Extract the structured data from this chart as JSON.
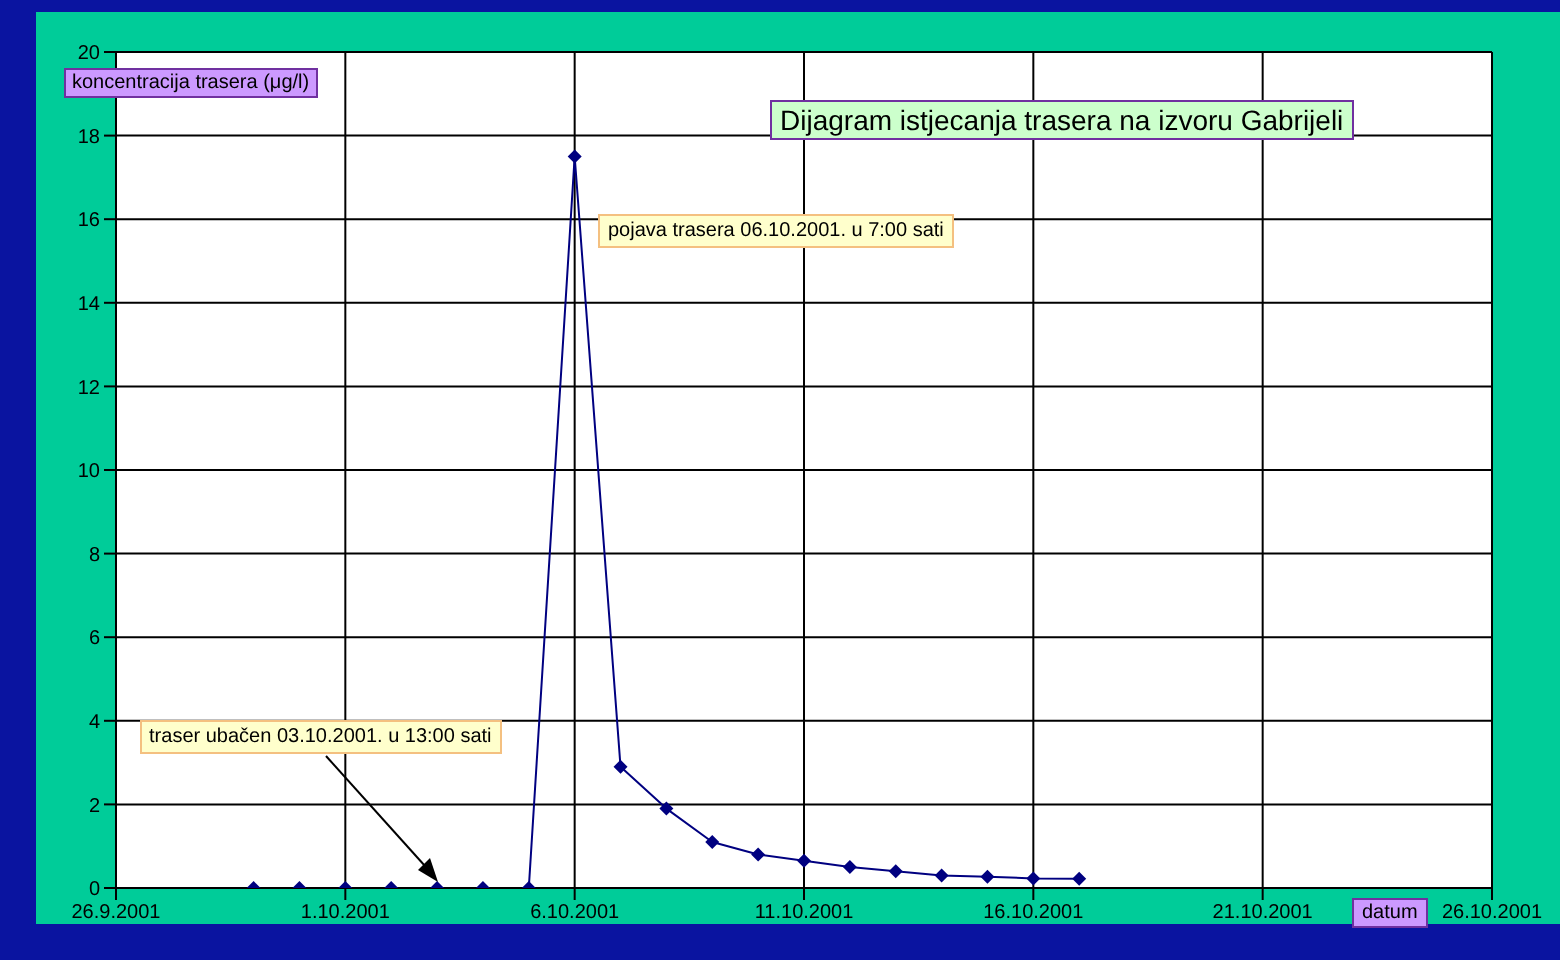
{
  "chart_data": {
    "type": "line",
    "title": "Dijagram istjecanja trasera na izvoru Gabrijeli",
    "xlabel": "datum",
    "ylabel": "koncentracija trasera (μg/l)",
    "x": [
      "2001-09-29",
      "2001-09-30",
      "2001-10-01",
      "2001-10-02",
      "2001-10-03",
      "2001-10-04",
      "2001-10-05",
      "2001-10-06",
      "2001-10-07",
      "2001-10-08",
      "2001-10-09",
      "2001-10-10",
      "2001-10-11",
      "2001-10-12",
      "2001-10-13",
      "2001-10-14",
      "2001-10-15",
      "2001-10-16",
      "2001-10-17"
    ],
    "series": [
      {
        "color": "#000080",
        "values": [
          0,
          0,
          0,
          0,
          0,
          0,
          0,
          17.5,
          2.9,
          1.9,
          1.1,
          0.8,
          0.65,
          0.5,
          0.4,
          0.3,
          0.27,
          0.23,
          0.22
        ]
      }
    ],
    "xlim": [
      "2001-09-26",
      "2001-10-26"
    ],
    "xticks": [
      {
        "value": "2001-09-26",
        "label": "26.9.2001"
      },
      {
        "value": "2001-10-01",
        "label": "1.10.2001"
      },
      {
        "value": "2001-10-06",
        "label": "6.10.2001"
      },
      {
        "value": "2001-10-11",
        "label": "11.10.2001"
      },
      {
        "value": "2001-10-16",
        "label": "16.10.2001"
      },
      {
        "value": "2001-10-21",
        "label": "21.10.2001"
      },
      {
        "value": "2001-10-26",
        "label": "26.10.2001"
      }
    ],
    "ylim": [
      0,
      20
    ],
    "yticks": [
      0,
      2,
      4,
      6,
      8,
      10,
      12,
      14,
      16,
      18,
      20
    ],
    "grid": true,
    "marker": "diamond",
    "line_style": "solid",
    "annotations": [
      {
        "text": "traser ubačen 03.10.2001. u 13:00 sati",
        "x": "2001-10-03",
        "y": 0
      },
      "pojava trasera 06.10.2001. u 7:00 sati"
    ]
  }
}
